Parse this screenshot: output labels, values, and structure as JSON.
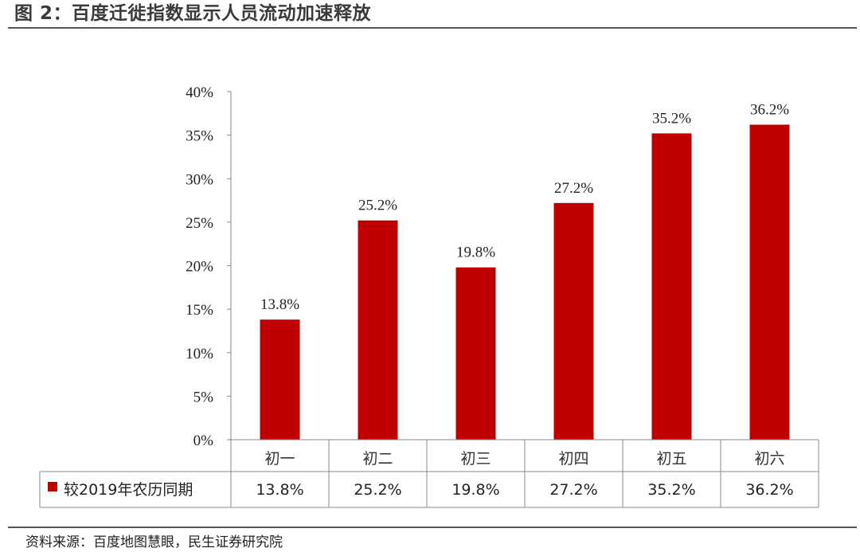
{
  "header": {
    "title": "图 2：百度迁徙指数显示人员流动加速释放"
  },
  "footer": {
    "source": "资料来源：百度地图慧眼，民生证券研究院"
  },
  "colors": {
    "bar": "#C00000",
    "text": "#222222",
    "rule": "#555555",
    "grid_line": "#888888"
  },
  "chart_data": {
    "type": "bar",
    "categories": [
      "初一",
      "初二",
      "初三",
      "初四",
      "初五",
      "初六"
    ],
    "series": [
      {
        "name": "较2019年农历同期",
        "values": [
          13.8,
          25.2,
          19.8,
          27.2,
          35.2,
          36.2
        ],
        "color": "#C00000"
      }
    ],
    "ylim": [
      0,
      40
    ],
    "yticks": [
      0,
      5,
      10,
      15,
      20,
      25,
      30,
      35,
      40
    ],
    "ytick_labels": [
      "0%",
      "5%",
      "10%",
      "15%",
      "20%",
      "25%",
      "30%",
      "35%",
      "40%"
    ],
    "data_labels": [
      "13.8%",
      "25.2%",
      "19.8%",
      "27.2%",
      "35.2%",
      "36.2%"
    ],
    "data_table": true,
    "legend": "data-table-row",
    "grid": false
  }
}
